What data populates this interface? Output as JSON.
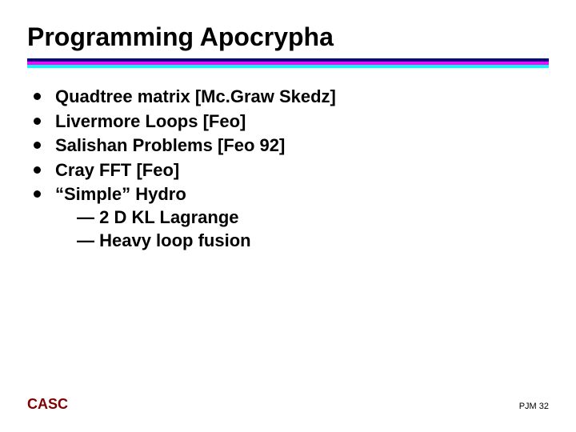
{
  "title": "Programming Apocrypha",
  "rule_colors": {
    "bar1": "#000080",
    "bar2": "#ff00ff",
    "bar3": "#00ffff"
  },
  "bullets": {
    "b1": "Quadtree matrix [Mc.Graw Skedz]",
    "b2": "Livermore Loops [Feo]",
    "b3": "Salishan Problems [Feo 92]",
    "b4": "Cray FFT [Feo]",
    "b5": "“Simple” Hydro",
    "b5_sub1": "— 2 D KL Lagrange",
    "b5_sub2": "— Heavy loop fusion"
  },
  "footer": {
    "left": "CASC",
    "right": "PJM  32"
  }
}
